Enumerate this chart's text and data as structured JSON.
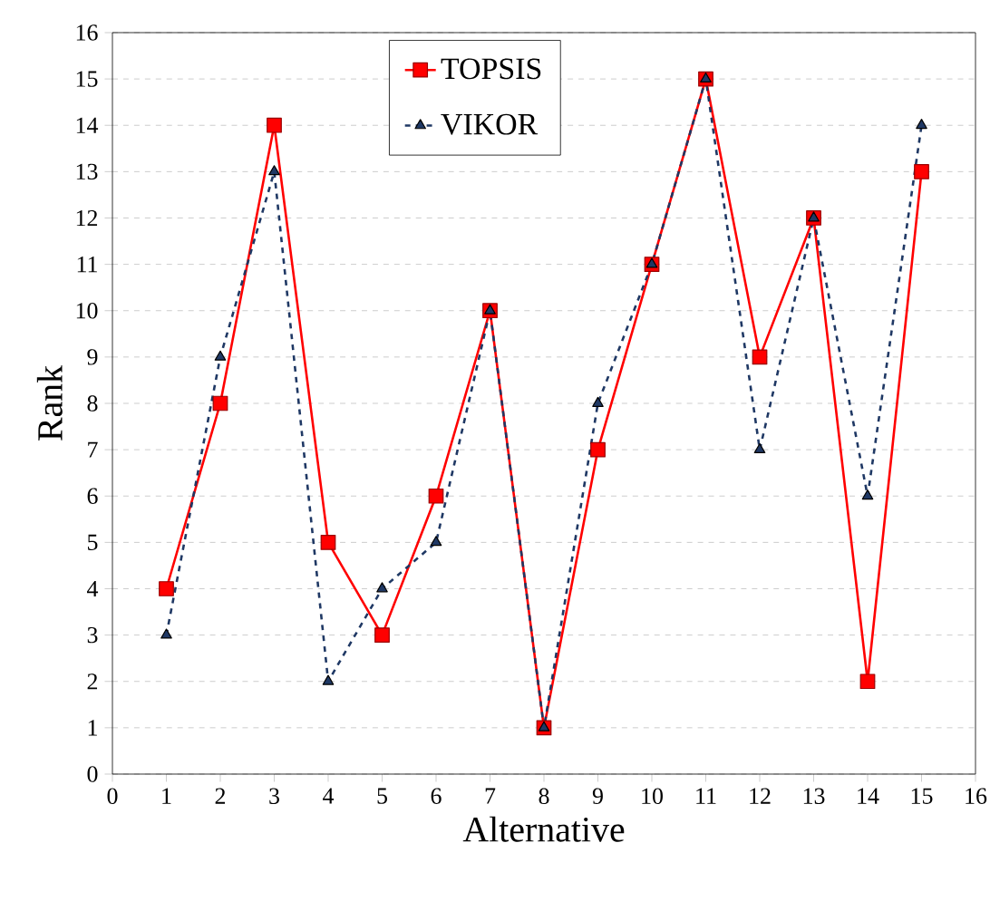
{
  "chart_data": {
    "type": "line",
    "xlabel": "Alternative",
    "ylabel": "Rank",
    "x": [
      1,
      2,
      3,
      4,
      5,
      6,
      7,
      8,
      9,
      10,
      11,
      12,
      13,
      14,
      15
    ],
    "series": [
      {
        "name": "TOPSIS",
        "color": "#ff0000",
        "marker": "square",
        "line_style": "solid",
        "values": [
          4,
          8,
          14,
          5,
          3,
          6,
          10,
          1,
          7,
          11,
          15,
          9,
          12,
          2,
          13
        ]
      },
      {
        "name": "VIKOR",
        "color": "#1f3864",
        "marker": "triangle",
        "line_style": "dashed",
        "values": [
          3,
          9,
          13,
          2,
          4,
          5,
          10,
          1,
          8,
          11,
          15,
          7,
          12,
          6,
          14
        ]
      }
    ],
    "xlim": [
      0,
      16
    ],
    "ylim": [
      0,
      16
    ],
    "xticks": [
      0,
      1,
      2,
      3,
      4,
      5,
      6,
      7,
      8,
      9,
      10,
      11,
      12,
      13,
      14,
      15,
      16
    ],
    "yticks": [
      0,
      1,
      2,
      3,
      4,
      5,
      6,
      7,
      8,
      9,
      10,
      11,
      12,
      13,
      14,
      15,
      16
    ],
    "grid": "y",
    "legend": "top"
  }
}
